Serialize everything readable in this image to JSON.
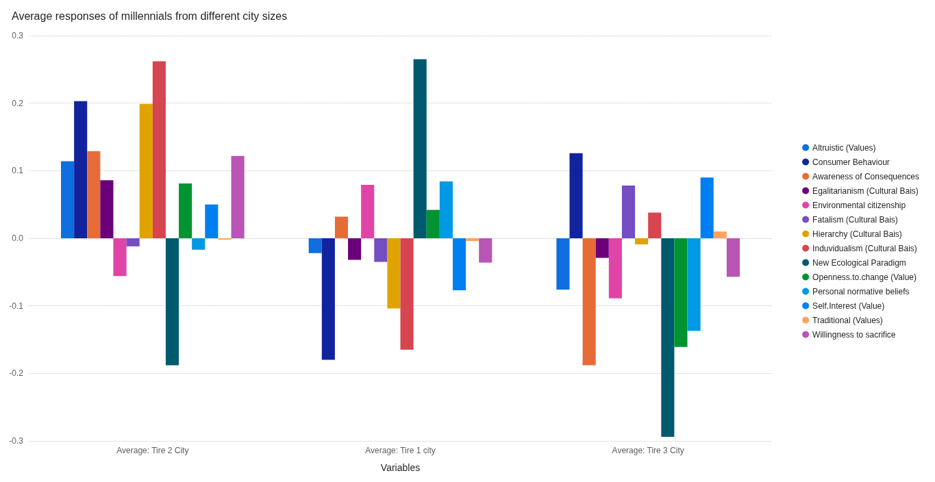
{
  "chart_data": {
    "type": "bar",
    "title": "Average responses of millennials from different city sizes",
    "xlabel": "Variables",
    "categories": [
      "Average: Tire 2 City",
      "Average: Tire 1 city",
      "Average: Tire 3 City"
    ],
    "series": [
      {
        "name": "Altruistic (Values)",
        "color": "#0f6fdf",
        "values": [
          0.114,
          -0.022,
          -0.076
        ]
      },
      {
        "name": "Consumer Behaviour",
        "color": "#12239e",
        "values": [
          0.203,
          -0.18,
          0.126
        ]
      },
      {
        "name": "Awareness of Consequences",
        "color": "#e66c37",
        "values": [
          0.129,
          0.032,
          -0.188
        ]
      },
      {
        "name": "Egalitarianism (Cultural Bais)",
        "color": "#6b007b",
        "values": [
          0.086,
          -0.032,
          -0.029
        ]
      },
      {
        "name": "Environmental citizenship",
        "color": "#e044a7",
        "values": [
          -0.056,
          0.079,
          -0.089
        ]
      },
      {
        "name": "Fatalism (Cultural Bais)",
        "color": "#744ec2",
        "values": [
          -0.012,
          -0.035,
          0.078
        ]
      },
      {
        "name": "Hierarchy (Cultural Bais)",
        "color": "#e0a400",
        "values": [
          0.199,
          -0.104,
          -0.009
        ]
      },
      {
        "name": "Induvidualism (Cultural Bais)",
        "color": "#d64550",
        "values": [
          0.262,
          -0.165,
          0.038
        ]
      },
      {
        "name": "New Ecological Paradigm",
        "color": "#005a6e",
        "values": [
          -0.188,
          0.265,
          -0.294
        ]
      },
      {
        "name": "Openness.to.change (Value)",
        "color": "#009331",
        "values": [
          0.081,
          0.042,
          -0.161
        ]
      },
      {
        "name": "Personal normative beliefs",
        "color": "#0099e5",
        "values": [
          -0.017,
          0.084,
          -0.137
        ]
      },
      {
        "name": "Self.Interest (Value)",
        "color": "#0080f0",
        "values": [
          0.05,
          -0.077,
          0.09
        ]
      },
      {
        "name": "Traditional (Values)",
        "color": "#ffa35e",
        "values": [
          -0.002,
          -0.004,
          0.01
        ]
      },
      {
        "name": "Willingness to sacrifice",
        "color": "#b955b4",
        "values": [
          0.122,
          -0.036,
          -0.057
        ]
      }
    ],
    "ylim": [
      -0.3,
      0.3
    ],
    "yticks": [
      -0.3,
      -0.2,
      -0.1,
      {
        "value": 0,
        "label": "0.0"
      },
      0.1,
      0.2,
      0.3
    ],
    "grid": "y",
    "legend": "right"
  }
}
